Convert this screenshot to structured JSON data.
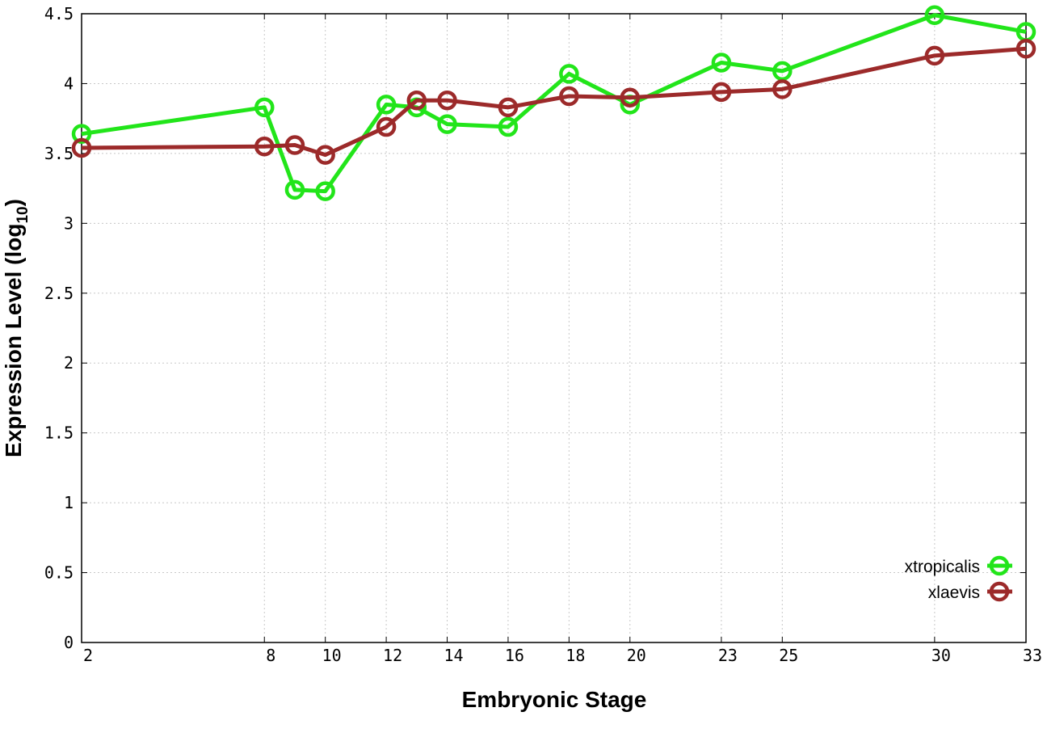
{
  "chart_data": {
    "type": "line",
    "xlabel": "Embryonic Stage",
    "ylabel": "Expression Level (log",
    "ylabel_subscript": "10",
    "ylabel_close": ")",
    "xlim": [
      2,
      33
    ],
    "ylim": [
      0,
      4.5
    ],
    "x_ticks": [
      2,
      8,
      10,
      12,
      14,
      16,
      18,
      20,
      23,
      25,
      30,
      33
    ],
    "x_tick_labels": [
      "2",
      "8",
      "10",
      "12",
      "14",
      "16",
      "18",
      "20",
      "23",
      "25",
      "30",
      "33"
    ],
    "y_ticks": [
      0,
      0.5,
      1,
      1.5,
      2,
      2.5,
      3,
      3.5,
      4,
      4.5
    ],
    "y_tick_labels": [
      "0",
      "0.5",
      "1",
      "1.5",
      "2",
      "2.5",
      "3",
      "3.5",
      "4",
      "4.5"
    ],
    "grid": true,
    "legend_position": "bottom-right",
    "series": [
      {
        "name": "xtropicalis",
        "color": "#22e51a",
        "x": [
          2,
          8,
          9,
          10,
          12,
          13,
          14,
          16,
          18,
          20,
          23,
          25,
          30,
          33
        ],
        "y": [
          3.64,
          3.83,
          3.24,
          3.23,
          3.85,
          3.83,
          3.71,
          3.69,
          4.07,
          3.85,
          4.15,
          4.09,
          4.49,
          4.37
        ]
      },
      {
        "name": "xlaevis",
        "color": "#9c2a2a",
        "x": [
          2,
          8,
          9,
          10,
          12,
          13,
          14,
          16,
          18,
          20,
          23,
          25,
          30,
          33
        ],
        "y": [
          3.54,
          3.55,
          3.56,
          3.49,
          3.69,
          3.88,
          3.88,
          3.83,
          3.91,
          3.9,
          3.94,
          3.96,
          4.2,
          4.25
        ]
      }
    ]
  }
}
